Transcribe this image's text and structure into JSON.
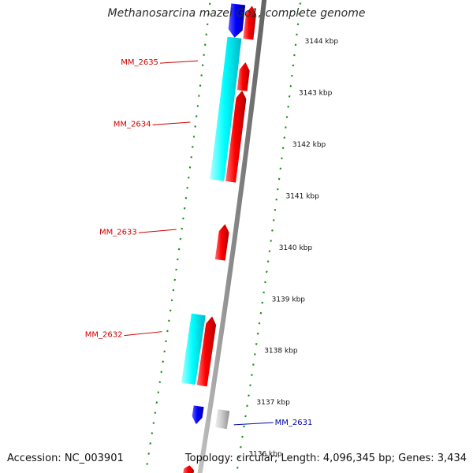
{
  "title": "Methanosarcina mazei Go1, complete genome",
  "footer": {
    "accession": "Accession: NC_003901",
    "topology": "Topology: circular; Length: 4,096,345 bp; Genes: 3,434"
  },
  "colors": {
    "forward_cds": "#ff0000",
    "forward_cds_alt": "#ff0000",
    "reverse_cds": "#0000ff",
    "reverse_other": "#00ffff",
    "pseudo": "#c0c0c0",
    "backbone": "#888888",
    "ruler": "#1e8c1e",
    "label_red": "#cc0000",
    "label_blue": "#0000aa"
  },
  "ruler_labels": [
    {
      "kbp": 3144,
      "text": "3144 kbp"
    },
    {
      "kbp": 3143,
      "text": "3143 kbp"
    },
    {
      "kbp": 3142,
      "text": "3142 kbp"
    },
    {
      "kbp": 3141,
      "text": "3141 kbp"
    },
    {
      "kbp": 3140,
      "text": "3140 kbp"
    },
    {
      "kbp": 3139,
      "text": "3139 kbp"
    },
    {
      "kbp": 3138,
      "text": "3138 kbp"
    },
    {
      "kbp": 3137,
      "text": "3137 kbp"
    },
    {
      "kbp": 3136,
      "text": "3136 kbp"
    }
  ],
  "gene_labels": [
    {
      "text": "MM_2635",
      "kbp": 3143.4,
      "side": "left",
      "color": "red"
    },
    {
      "text": "MM_2634",
      "kbp": 3142.2,
      "side": "left",
      "color": "red"
    },
    {
      "text": "MM_2633",
      "kbp": 3140.1,
      "side": "left",
      "color": "red"
    },
    {
      "text": "MM_2632",
      "kbp": 3138.1,
      "side": "left",
      "color": "red"
    },
    {
      "text": "MM_2631",
      "kbp": 3136.5,
      "side": "right",
      "color": "blue"
    }
  ],
  "features": [
    {
      "name": "reverse-cds-top",
      "track": "outer2",
      "start_kbp": 3144.55,
      "end_kbp": 3143.9,
      "type": "reverse_cds"
    },
    {
      "name": "forward-cds-top",
      "track": "outer1",
      "start_kbp": 3144.55,
      "end_kbp": 3143.9,
      "type": "forward_cds"
    },
    {
      "name": "cyan-top",
      "track": "outer2",
      "start_kbp": 3143.9,
      "end_kbp": 3141.12,
      "type": "reverse_other"
    },
    {
      "name": "mm2635-cds",
      "track": "outer1",
      "start_kbp": 3143.45,
      "end_kbp": 3142.9,
      "type": "forward_cds"
    },
    {
      "name": "mm2634-cds",
      "track": "outer1",
      "start_kbp": 3142.9,
      "end_kbp": 3141.12,
      "type": "forward_cds"
    },
    {
      "name": "mm2633-cds",
      "track": "outer1",
      "start_kbp": 3140.3,
      "end_kbp": 3139.6,
      "type": "forward_cds"
    },
    {
      "name": "mm2632-cyan",
      "track": "outer2",
      "start_kbp": 3138.5,
      "end_kbp": 3137.15,
      "type": "reverse_other"
    },
    {
      "name": "mm2632-cds",
      "track": "outer1",
      "start_kbp": 3138.5,
      "end_kbp": 3137.15,
      "type": "forward_cds"
    },
    {
      "name": "mm2631-cds",
      "track": "outer1",
      "start_kbp": 3136.75,
      "end_kbp": 3136.4,
      "type": "reverse_cds"
    },
    {
      "name": "mm2631-grey",
      "track": "inner1",
      "start_kbp": 3136.75,
      "end_kbp": 3136.4,
      "type": "pseudo"
    },
    {
      "name": "bottom-cds",
      "track": "outer1",
      "start_kbp": 3135.6,
      "end_kbp": 3135.4,
      "type": "forward_cds"
    }
  ]
}
